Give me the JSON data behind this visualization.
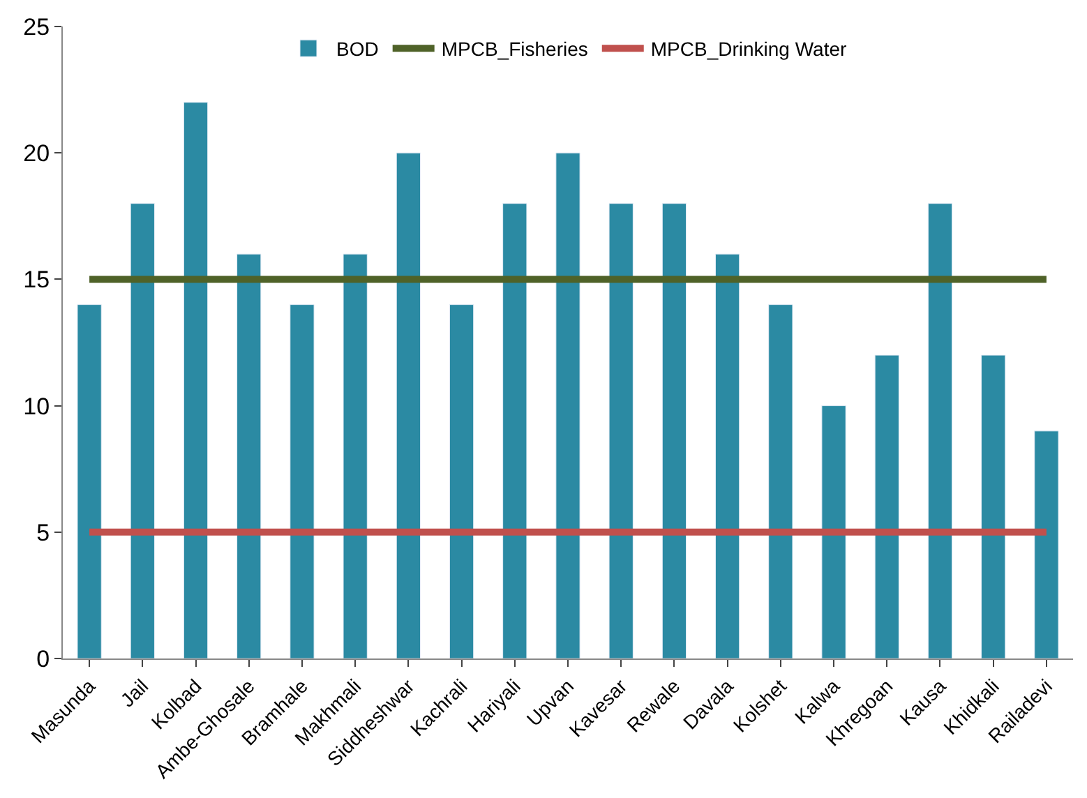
{
  "chart_data": {
    "type": "bar",
    "categories": [
      "Masunda",
      "Jail",
      "Kolbad",
      "Ambe-Ghosale",
      "Bramhale",
      "Makhmali",
      "Siddheshwar",
      "Kachrali",
      "Hariyali",
      "Upvan",
      "Kavesar",
      "Rewale",
      "Davala",
      "Kolshet",
      "Kalwa",
      "Khregoan",
      "Kausa",
      "Khidkali",
      "Railadevi"
    ],
    "series": [
      {
        "name": "BOD",
        "color": "#2b8aa3",
        "values": [
          14,
          18,
          22,
          16,
          14,
          16,
          20,
          14,
          18,
          20,
          18,
          18,
          16,
          14,
          10,
          12,
          18,
          12,
          9
        ]
      },
      {
        "name": "MPCB_Fisheries",
        "type": "line",
        "color": "#4f6228",
        "values": [
          15,
          15,
          15,
          15,
          15,
          15,
          15,
          15,
          15,
          15,
          15,
          15,
          15,
          15,
          15,
          15,
          15,
          15,
          15
        ]
      },
      {
        "name": "MPCB_Drinking Water",
        "type": "line",
        "color": "#c0504d",
        "values": [
          5,
          5,
          5,
          5,
          5,
          5,
          5,
          5,
          5,
          5,
          5,
          5,
          5,
          5,
          5,
          5,
          5,
          5,
          5
        ]
      }
    ],
    "ylim": [
      0,
      25
    ],
    "yticks": [
      0,
      5,
      10,
      15,
      20,
      25
    ],
    "grid": false,
    "legend": "top",
    "marker": "none",
    "line_style": "solid"
  }
}
